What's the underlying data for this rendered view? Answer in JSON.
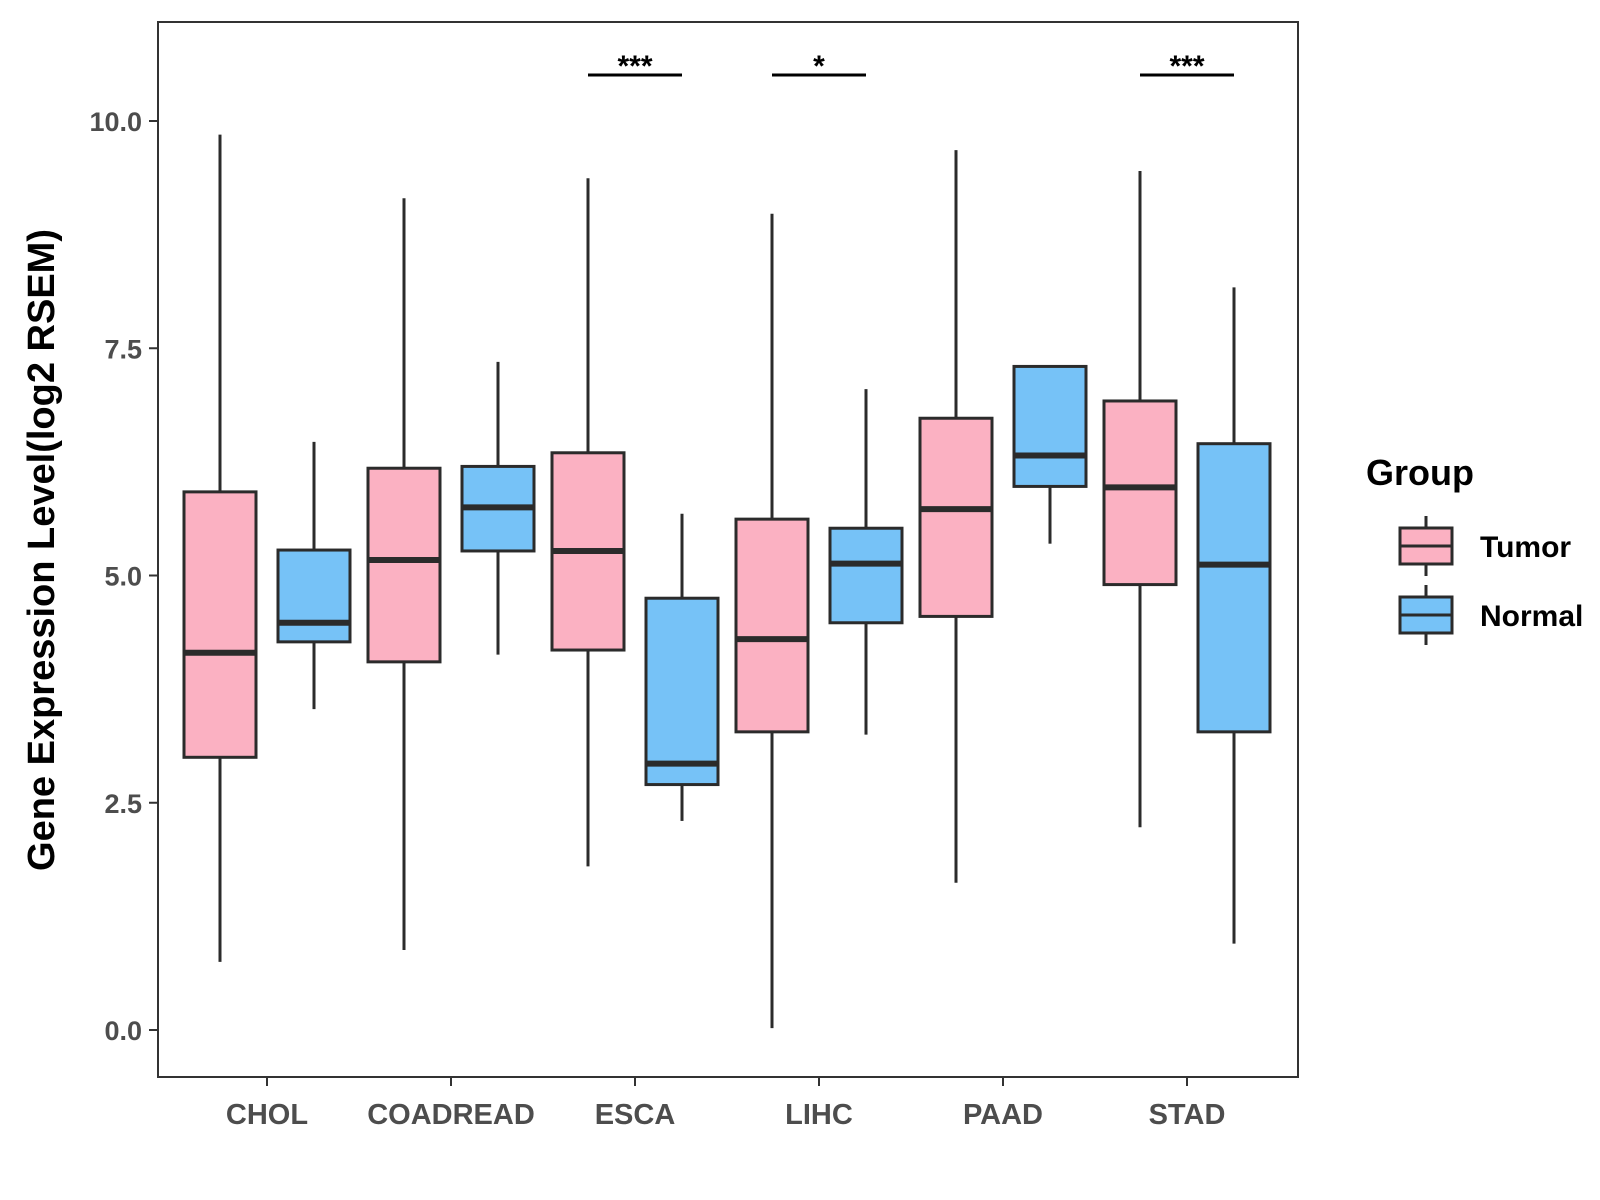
{
  "chart_data": {
    "type": "boxplot",
    "title": "",
    "xlabel": "",
    "ylabel": "Gene Expression Level(log2 RSEM)",
    "ylim": [
      -0.5,
      11.0
    ],
    "yticks": [
      0.0,
      2.5,
      5.0,
      7.5,
      10.0
    ],
    "ytick_labels": [
      "0.0",
      "2.5",
      "5.0",
      "7.5",
      "10.0"
    ],
    "categories": [
      "CHOL",
      "COADREAD",
      "ESCA",
      "LIHC",
      "PAAD",
      "STAD"
    ],
    "legend": {
      "title": "Group",
      "position": "right",
      "entries": [
        "Tumor",
        "Normal"
      ]
    },
    "series": [
      {
        "name": "Tumor",
        "color": "#fbb1c2",
        "boxes": [
          {
            "whisker_low": 0.75,
            "q1": 3.0,
            "median": 4.15,
            "q3": 5.92,
            "whisker_high": 9.85
          },
          {
            "whisker_low": 0.88,
            "q1": 4.05,
            "median": 5.17,
            "q3": 6.18,
            "whisker_high": 9.15
          },
          {
            "whisker_low": 1.8,
            "q1": 4.18,
            "median": 5.27,
            "q3": 6.35,
            "whisker_high": 9.37
          },
          {
            "whisker_low": 0.02,
            "q1": 3.28,
            "median": 4.3,
            "q3": 5.62,
            "whisker_high": 8.98
          },
          {
            "whisker_low": 1.62,
            "q1": 4.55,
            "median": 5.73,
            "q3": 6.73,
            "whisker_high": 9.68
          },
          {
            "whisker_low": 2.23,
            "q1": 4.9,
            "median": 5.97,
            "q3": 6.92,
            "whisker_high": 9.45
          }
        ]
      },
      {
        "name": "Normal",
        "color": "#76c2f7",
        "boxes": [
          {
            "whisker_low": 3.53,
            "q1": 4.27,
            "median": 4.48,
            "q3": 5.28,
            "whisker_high": 6.47
          },
          {
            "whisker_low": 4.13,
            "q1": 5.27,
            "median": 5.75,
            "q3": 6.2,
            "whisker_high": 7.35
          },
          {
            "whisker_low": 2.3,
            "q1": 2.7,
            "median": 2.93,
            "q3": 4.75,
            "whisker_high": 5.68
          },
          {
            "whisker_low": 3.25,
            "q1": 4.48,
            "median": 5.13,
            "q3": 5.52,
            "whisker_high": 7.05
          },
          {
            "whisker_low": 5.35,
            "q1": 5.98,
            "median": 6.32,
            "q3": 7.3,
            "whisker_high": 7.3
          },
          {
            "whisker_low": 0.95,
            "q1": 3.28,
            "median": 5.12,
            "q3": 6.45,
            "whisker_high": 8.17
          }
        ]
      }
    ],
    "significance": [
      {
        "category": "ESCA",
        "label": "***"
      },
      {
        "category": "LIHC",
        "label": "*"
      },
      {
        "category": "STAD",
        "label": "***"
      }
    ],
    "grid": false
  }
}
